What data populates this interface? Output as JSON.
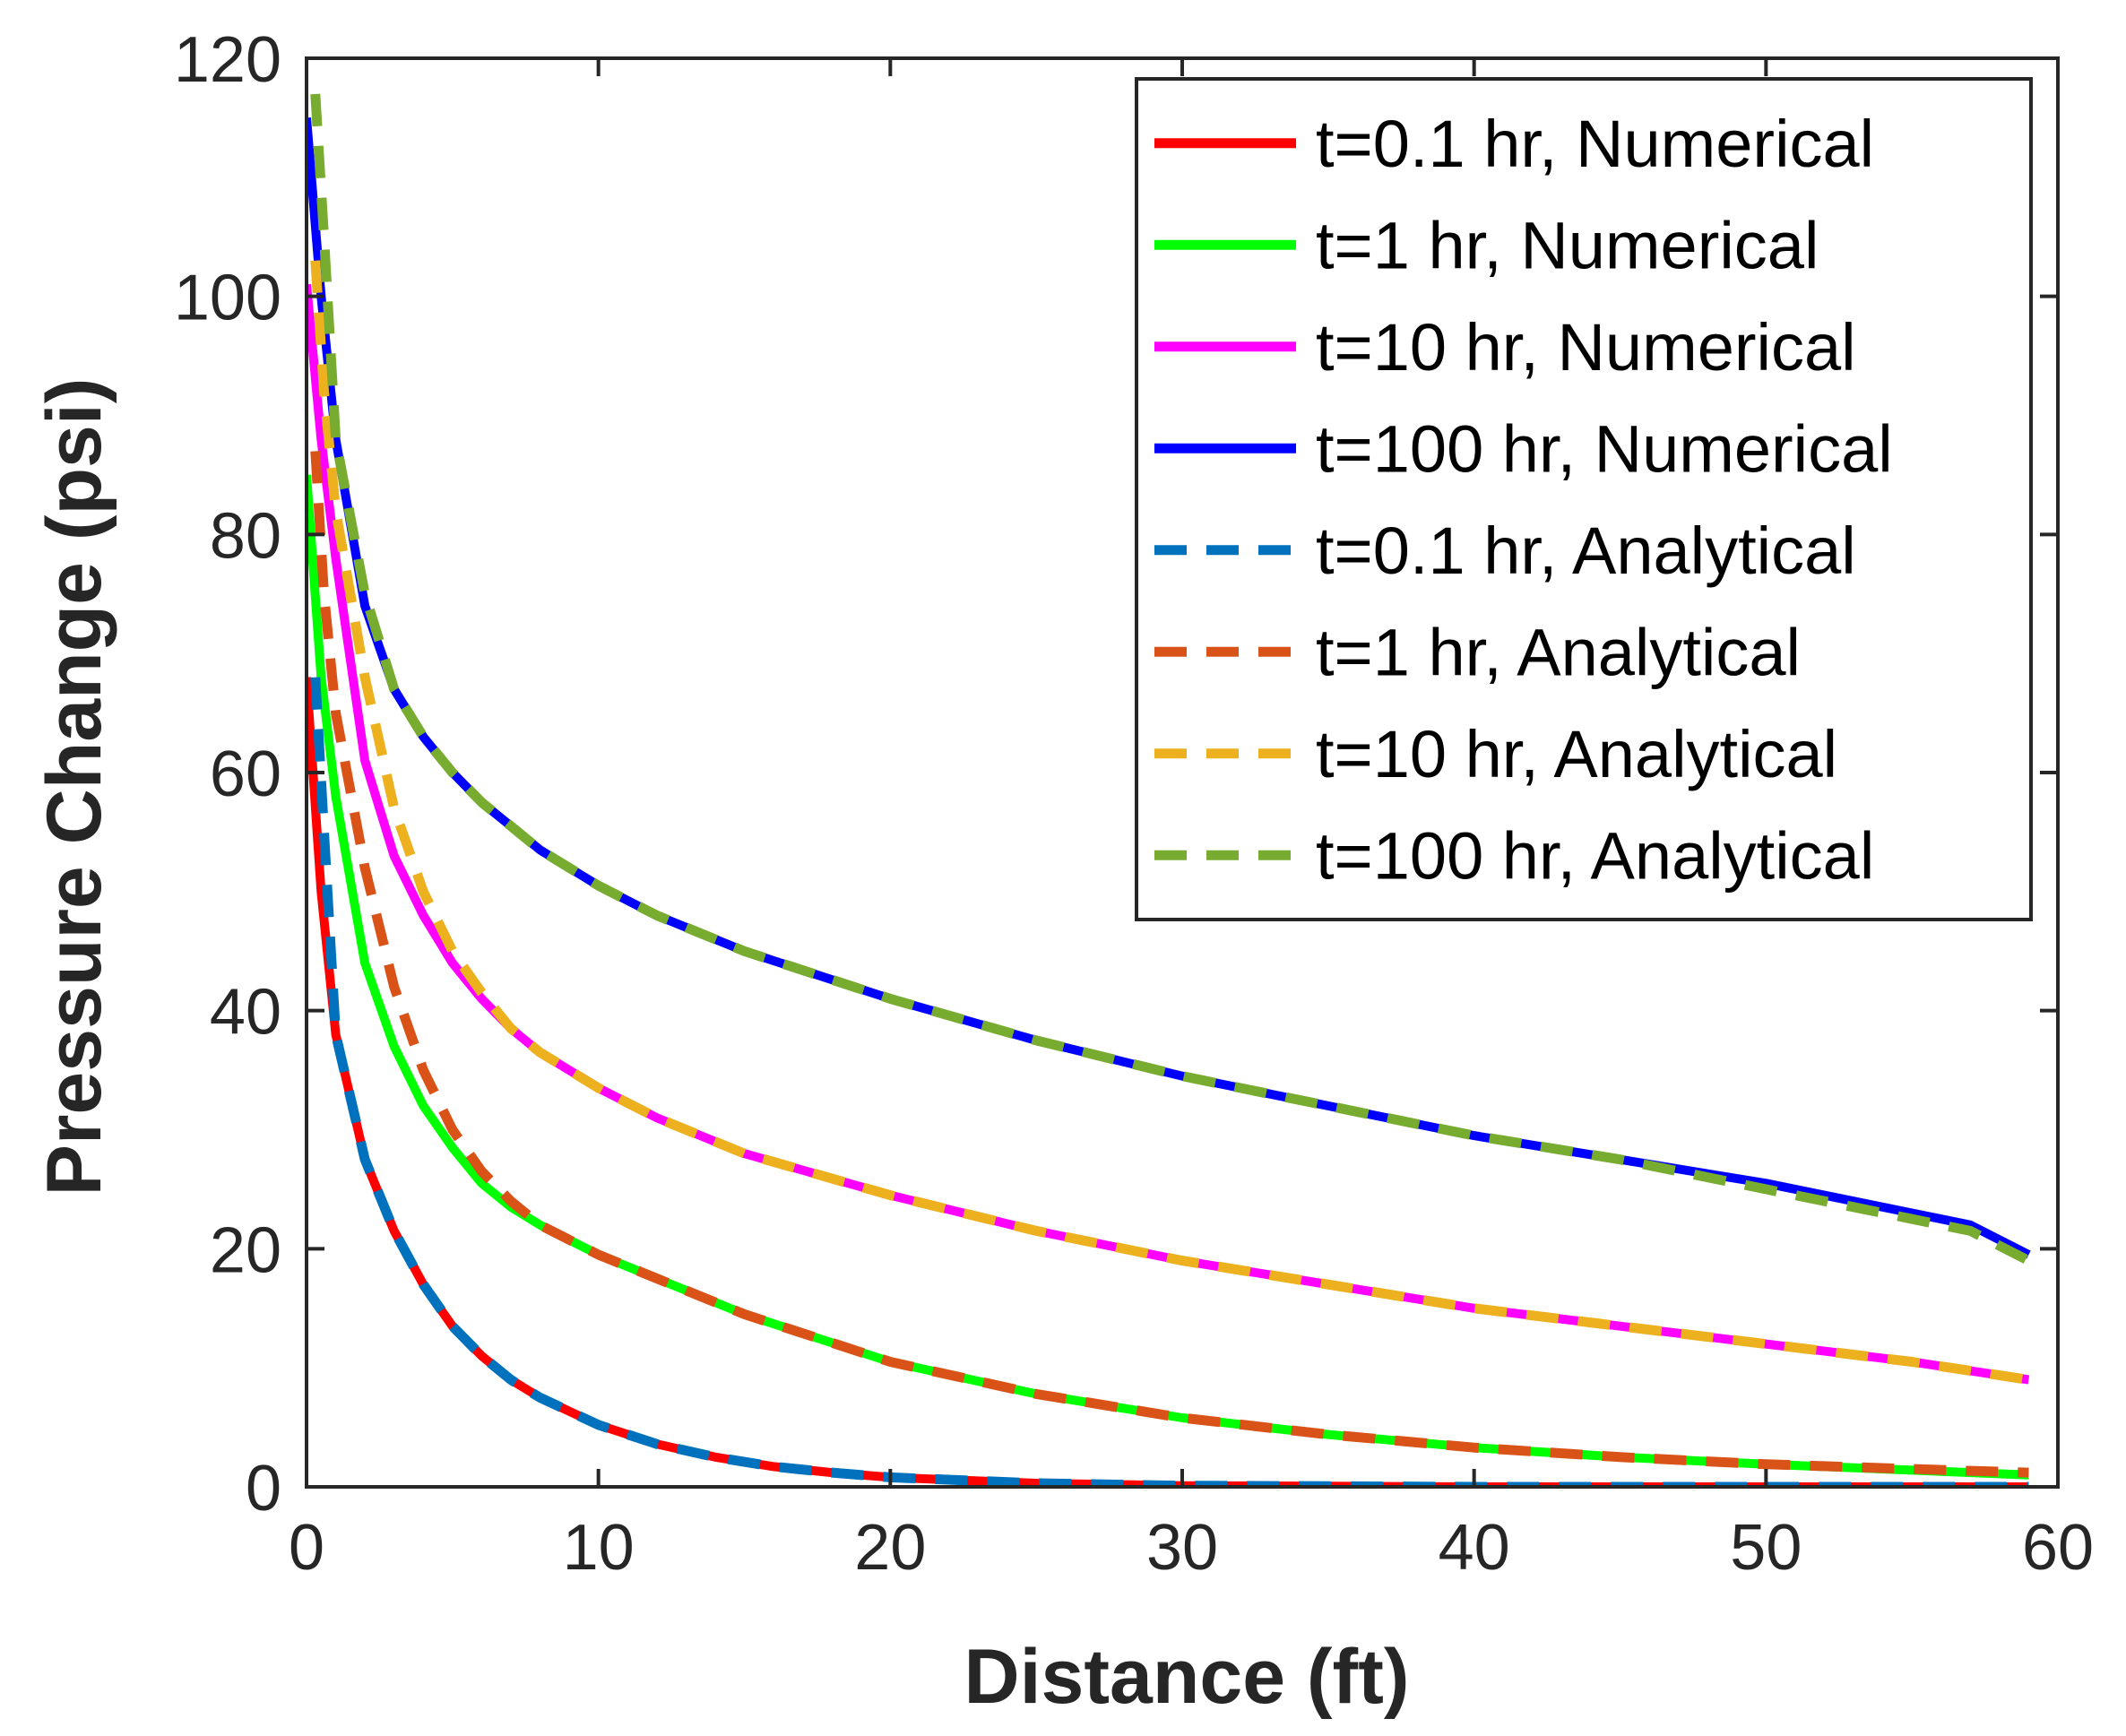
{
  "chart_data": {
    "type": "line",
    "title": "",
    "xlabel": "Distance (ft)",
    "ylabel": "Pressure Change (psi)",
    "xlim": [
      0,
      60
    ],
    "ylim": [
      0,
      120
    ],
    "xticks": [
      0,
      10,
      20,
      30,
      40,
      50,
      60
    ],
    "yticks": [
      0,
      20,
      40,
      60,
      80,
      100,
      120
    ],
    "grid": false,
    "legend_position": "top-right",
    "series": [
      {
        "name": "t=0.1 hr, Numerical",
        "color": "#ff0000",
        "style": "solid",
        "x": [
          0,
          0.5,
          1,
          2,
          3,
          4,
          5,
          6,
          7,
          8,
          10,
          12,
          14,
          16,
          18,
          20,
          25,
          30,
          35,
          40,
          45,
          50,
          55,
          59
        ],
        "y": [
          68,
          50,
          38,
          27.5,
          21.5,
          17,
          13.5,
          11,
          9,
          7.5,
          5.2,
          3.6,
          2.5,
          1.7,
          1.2,
          0.8,
          0.3,
          0.1,
          0.05,
          0,
          0,
          0,
          0,
          0
        ]
      },
      {
        "name": "t=1 hr, Numerical",
        "color": "#00ff00",
        "style": "solid",
        "x": [
          0,
          0.5,
          1,
          2,
          3,
          4,
          5,
          6,
          7,
          8,
          10,
          12,
          15,
          20,
          25,
          30,
          35,
          40,
          45,
          50,
          55,
          59
        ],
        "y": [
          85,
          68,
          58,
          44,
          37,
          32,
          28.5,
          25.5,
          23.5,
          22,
          19.5,
          17.5,
          14.5,
          10.5,
          7.8,
          5.8,
          4.4,
          3.3,
          2.5,
          1.9,
          1.4,
          1
        ]
      },
      {
        "name": "t=10 hr, Numerical",
        "color": "#ff00ff",
        "style": "solid",
        "x": [
          0,
          0.5,
          1,
          2,
          3,
          4,
          5,
          6,
          7,
          8,
          10,
          12,
          15,
          20,
          25,
          30,
          35,
          40,
          45,
          50,
          55,
          59
        ],
        "y": [
          101,
          88,
          78,
          61,
          53,
          48,
          44,
          41,
          38.5,
          36.5,
          33.5,
          31,
          28,
          24.5,
          21.5,
          19,
          17,
          15,
          13.5,
          12,
          10.5,
          9
        ]
      },
      {
        "name": "t=100 hr, Numerical",
        "color": "#0000ff",
        "style": "solid",
        "x": [
          0,
          0.5,
          1,
          2,
          3,
          4,
          5,
          6,
          7,
          8,
          10,
          12,
          15,
          20,
          25,
          30,
          35,
          40,
          45,
          50,
          55,
          57,
          59
        ],
        "y": [
          115,
          100,
          88,
          74,
          67,
          63,
          60,
          57.5,
          55.5,
          53.5,
          50.5,
          48,
          45,
          41,
          37.5,
          34.5,
          32,
          29.5,
          27.5,
          25.5,
          23,
          22,
          19.5
        ]
      },
      {
        "name": "t=0.1 hr, Analytical",
        "color": "#0072bd",
        "style": "dashed",
        "x": [
          0.3,
          0.6,
          1,
          2,
          3,
          4,
          5,
          6,
          7,
          8,
          10,
          12,
          14,
          16,
          18,
          20,
          25,
          30,
          35,
          40,
          45,
          50,
          55,
          59
        ],
        "y": [
          68,
          55,
          38,
          27.5,
          21.5,
          17,
          13.5,
          11,
          9,
          7.5,
          5.2,
          3.6,
          2.5,
          1.7,
          1.2,
          0.8,
          0.3,
          0.1,
          0.05,
          0,
          0,
          0,
          0,
          0
        ]
      },
      {
        "name": "t=1 hr, Analytical",
        "color": "#d95319",
        "style": "dashed",
        "x": [
          0.3,
          0.6,
          1,
          2,
          3,
          4,
          5,
          6,
          7,
          8,
          10,
          12,
          15,
          20,
          25,
          30,
          35,
          40,
          45,
          50,
          55,
          59
        ],
        "y": [
          87,
          75,
          65,
          52,
          42,
          35,
          30,
          26.5,
          24,
          22,
          19.5,
          17.5,
          14.5,
          10.5,
          7.8,
          5.8,
          4.4,
          3.3,
          2.5,
          1.9,
          1.5,
          1.2
        ]
      },
      {
        "name": "t=10 hr, Analytical",
        "color": "#edb120",
        "style": "dashed",
        "x": [
          0.3,
          0.6,
          1,
          2,
          3,
          4,
          5,
          6,
          7,
          8,
          10,
          12,
          15,
          20,
          25,
          30,
          35,
          40,
          45,
          50,
          55,
          59
        ],
        "y": [
          103,
          92,
          82,
          68,
          57,
          50,
          45,
          41.5,
          38.5,
          36.5,
          33.5,
          31,
          28,
          24.5,
          21.5,
          19,
          17,
          15,
          13.5,
          12,
          10.5,
          9
        ]
      },
      {
        "name": "t=100 hr, Analytical",
        "color": "#77ac30",
        "style": "dashed",
        "x": [
          0.3,
          0.6,
          1,
          2,
          3,
          4,
          5,
          6,
          7,
          8,
          10,
          12,
          15,
          20,
          25,
          30,
          35,
          40,
          45,
          50,
          55,
          57,
          59
        ],
        "y": [
          117,
          105,
          88,
          75,
          67,
          63,
          60,
          57.5,
          55.5,
          53.5,
          50.5,
          48,
          45,
          41,
          37.5,
          34.5,
          32,
          29.5,
          27.5,
          25,
          22.5,
          21.5,
          19
        ]
      }
    ]
  }
}
